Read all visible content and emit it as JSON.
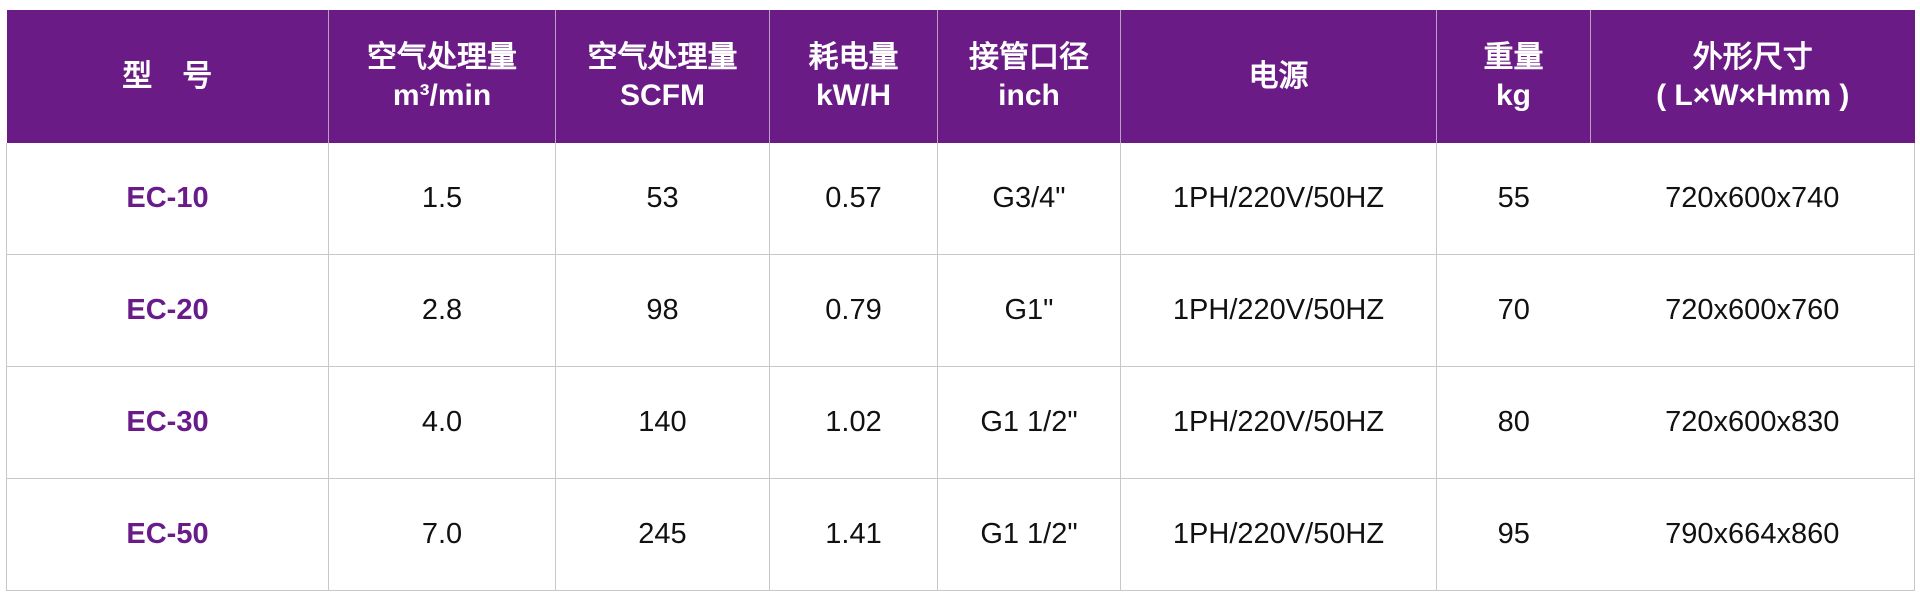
{
  "colors": {
    "header_bg": "#6b1b86",
    "model_text": "#6a1b8a"
  },
  "headers": [
    {
      "line1": "型　号",
      "line2": ""
    },
    {
      "line1": "空气处理量",
      "line2": "m³/min"
    },
    {
      "line1": "空气处理量",
      "line2": "SCFM"
    },
    {
      "line1": "耗电量",
      "line2": "kW/H"
    },
    {
      "line1": "接管口径",
      "line2": "inch"
    },
    {
      "line1": "电源",
      "line2": ""
    },
    {
      "line1": "重量",
      "line2": "kg"
    },
    {
      "line1": "外形尺寸",
      "line2": "( L×W×Hmm )"
    }
  ],
  "rows": [
    [
      "EC-10",
      "1.5",
      "53",
      "0.57",
      "G3/4\"",
      "1PH/220V/50HZ",
      "55",
      "720x600x740"
    ],
    [
      "EC-20",
      "2.8",
      "98",
      "0.79",
      "G1\"",
      "1PH/220V/50HZ",
      "70",
      "720x600x760"
    ],
    [
      "EC-30",
      "4.0",
      "140",
      "1.02",
      "G1 1/2\"",
      "1PH/220V/50HZ",
      "80",
      "720x600x830"
    ],
    [
      "EC-50",
      "7.0",
      "245",
      "1.41",
      "G1 1/2\"",
      "1PH/220V/50HZ",
      "95",
      "790x664x860"
    ]
  ]
}
